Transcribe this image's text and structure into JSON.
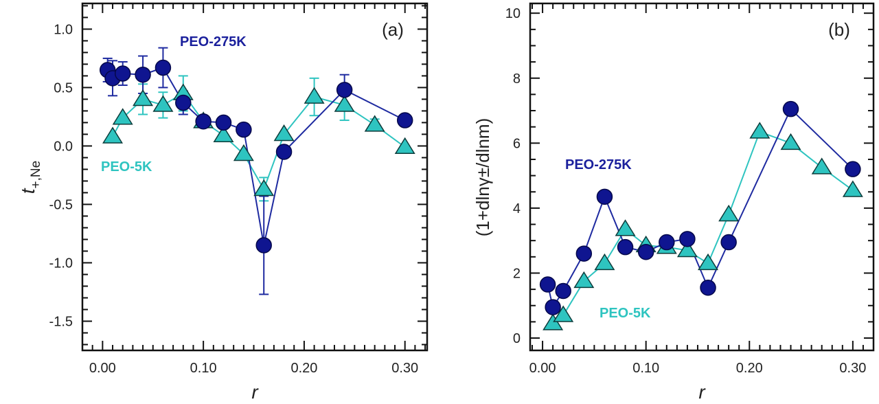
{
  "chart_data": [
    {
      "type": "scatter",
      "panel_label": "(a)",
      "xlabel": "r",
      "ylabel_main": "t",
      "ylabel_sub": "+,Ne",
      "xlim": [
        -0.02,
        0.322
      ],
      "ylim": [
        -1.75,
        1.22
      ],
      "xticks": [
        0.0,
        0.1,
        0.2,
        0.3
      ],
      "xtick_labels": [
        "0.00",
        "0.10",
        "0.20",
        "0.30"
      ],
      "yticks": [
        1.0,
        0.5,
        0.0,
        -0.5,
        -1.0,
        -1.5
      ],
      "ytick_labels": [
        "1.0",
        "0.5",
        "0.0",
        "-0.5",
        "-1.0",
        "-1.5"
      ],
      "x_minor_step": 0.01,
      "y_minor_step": 0.1,
      "grid": false,
      "series": [
        {
          "name": "PEO-5K",
          "marker": "triangle",
          "color": "#2ec4c0",
          "line_color": "#2ec4c0",
          "x": [
            0.01,
            0.02,
            0.04,
            0.06,
            0.08,
            0.1,
            0.12,
            0.14,
            0.16,
            0.18,
            0.21,
            0.24,
            0.27,
            0.3
          ],
          "y": [
            0.08,
            0.24,
            0.4,
            0.35,
            0.45,
            0.21,
            0.09,
            -0.07,
            -0.37,
            0.1,
            0.42,
            0.35,
            0.18,
            -0.01
          ],
          "err": [
            0,
            0,
            0.13,
            0.11,
            0.15,
            0,
            0,
            0,
            0.1,
            0,
            0.16,
            0.13,
            0.05,
            0
          ]
        },
        {
          "name": "PEO-275K",
          "marker": "circle",
          "color": "#0f1590",
          "line_color": "#1e2aa0",
          "x": [
            0.005,
            0.01,
            0.02,
            0.04,
            0.06,
            0.08,
            0.1,
            0.12,
            0.14,
            0.16,
            0.18,
            0.24,
            0.3
          ],
          "y": [
            0.65,
            0.58,
            0.62,
            0.61,
            0.67,
            0.37,
            0.21,
            0.2,
            0.14,
            -0.85,
            -0.05,
            0.48,
            0.22
          ],
          "err": [
            0.1,
            0.15,
            0.1,
            0.16,
            0.17,
            0.1,
            0,
            0,
            0,
            0.42,
            0,
            0.13,
            0
          ]
        }
      ],
      "annotations": [
        {
          "text": "PEO-275K",
          "color": "#1a1f9c"
        },
        {
          "text": "PEO-5K",
          "color": "#2ec4c0"
        }
      ]
    },
    {
      "type": "line",
      "panel_label": "(b)",
      "xlabel": "r",
      "ylabel": "(1+dlnγ±/dlnm)",
      "xlim": [
        -0.012,
        0.32
      ],
      "ylim": [
        -0.38,
        10.3
      ],
      "xticks": [
        0.0,
        0.1,
        0.2,
        0.3
      ],
      "xtick_labels": [
        "0.00",
        "0.10",
        "0.20",
        "0.30"
      ],
      "yticks": [
        0,
        2,
        4,
        6,
        8,
        10
      ],
      "ytick_labels": [
        "0",
        "2",
        "4",
        "6",
        "8",
        "10"
      ],
      "x_minor_step": 0.01,
      "y_minor_step": 0.5,
      "grid": false,
      "series": [
        {
          "name": "PEO-5K",
          "marker": "triangle",
          "color": "#2ec4c0",
          "line_color": "#2ec4c0",
          "x": [
            0.01,
            0.02,
            0.04,
            0.06,
            0.08,
            0.1,
            0.12,
            0.14,
            0.16,
            0.18,
            0.21,
            0.24,
            0.27,
            0.3
          ],
          "y": [
            0.45,
            0.7,
            1.75,
            2.3,
            3.35,
            2.85,
            2.8,
            2.7,
            2.3,
            3.8,
            6.35,
            6.0,
            5.25,
            4.55
          ]
        },
        {
          "name": "PEO-275K",
          "marker": "circle",
          "color": "#0f1590",
          "line_color": "#1e2aa0",
          "x": [
            0.005,
            0.01,
            0.02,
            0.04,
            0.06,
            0.08,
            0.1,
            0.12,
            0.14,
            0.16,
            0.18,
            0.24,
            0.3
          ],
          "y": [
            1.65,
            0.95,
            1.45,
            2.6,
            4.35,
            2.8,
            2.65,
            2.95,
            3.05,
            1.55,
            2.95,
            7.05,
            5.2
          ]
        }
      ],
      "annotations": [
        {
          "text": "PEO-275K",
          "color": "#1a1f9c"
        },
        {
          "text": "PEO-5K",
          "color": "#2ec4c0"
        }
      ]
    }
  ]
}
